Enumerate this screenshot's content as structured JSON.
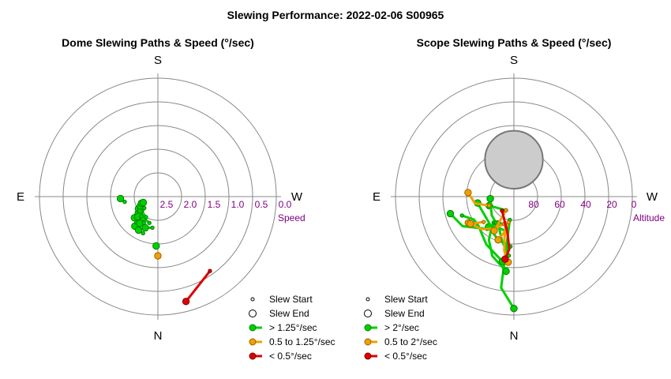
{
  "title": "Slewing Performance: 2022-02-06 S00965",
  "colors": {
    "fast": "#00d000",
    "fast_stroke": "#008000",
    "mid": "#f0a000",
    "mid_stroke": "#a06000",
    "slow": "#dd0000",
    "slow_stroke": "#800000",
    "axis_label": "#800080",
    "pole": "#cccccc"
  },
  "chart_data": [
    {
      "type": "polar-scatter",
      "title": "Dome Slewing Paths & Speed (°/sec)",
      "directions": {
        "top": "S",
        "bottom": "N",
        "left": "E",
        "right": "W"
      },
      "radial_label": "Speed",
      "radial_ticks": [
        "2.5",
        "2.0",
        "1.5",
        "1.0",
        "0.5",
        "0.0"
      ],
      "radial_tick_values": [
        2.5,
        2.0,
        1.5,
        1.0,
        0.5,
        0.0
      ],
      "rlim": [
        3.0,
        0.0
      ],
      "legend": {
        "position": "bottom-right",
        "entries": [
          "Slew Start",
          "Slew End",
          "> 1.25°/sec",
          "0.5 to 1.25°/sec",
          "< 0.5°/sec"
        ]
      },
      "paths": [
        {
          "speed_class": "slow",
          "az": [
            195,
            215
          ],
          "r": [
            0.25,
            0.7
          ]
        },
        {
          "speed_class": "mid",
          "az": [
            180,
            180
          ],
          "r": [
            1.5,
            1.5
          ]
        },
        {
          "speed_class": "fast",
          "az": [
            178,
            178
          ],
          "r": [
            1.75,
            1.75
          ]
        },
        {
          "speed_class": "fast",
          "az": [
            142,
            148
          ],
          "r": [
            2.05,
            2.05
          ]
        },
        {
          "speed_class": "fast",
          "az": [
            150,
            158
          ],
          "r": [
            2.02,
            2.0
          ]
        },
        {
          "speed_class": "fast",
          "az": [
            132,
            140
          ],
          "r": [
            2.2,
            2.15
          ]
        },
        {
          "speed_class": "fast",
          "az": [
            146,
            160
          ],
          "r": [
            2.18,
            2.12
          ]
        },
        {
          "speed_class": "fast",
          "az": [
            158,
            170
          ],
          "r": [
            2.15,
            2.2
          ]
        },
        {
          "speed_class": "fast",
          "az": [
            130,
            132
          ],
          "r": [
            2.35,
            2.3
          ]
        },
        {
          "speed_class": "fast",
          "az": [
            135,
            152
          ],
          "r": [
            2.28,
            2.25
          ]
        },
        {
          "speed_class": "fast",
          "az": [
            145,
            162
          ],
          "r": [
            2.35,
            2.3
          ]
        },
        {
          "speed_class": "fast",
          "az": [
            122,
            140
          ],
          "r": [
            2.42,
            2.35
          ]
        },
        {
          "speed_class": "fast",
          "az": [
            128,
            150
          ],
          "r": [
            2.45,
            2.4
          ]
        },
        {
          "speed_class": "fast",
          "az": [
            118,
            130
          ],
          "r": [
            2.5,
            2.5
          ]
        },
        {
          "speed_class": "fast",
          "az": [
            112,
            118
          ],
          "r": [
            2.55,
            2.55
          ]
        },
        {
          "speed_class": "fast",
          "az": [
            112,
            130
          ],
          "r": [
            2.6,
            2.55
          ]
        },
        {
          "speed_class": "fast",
          "az": [
            93,
            99
          ],
          "r": [
            2.05,
            2.15
          ]
        }
      ]
    },
    {
      "type": "polar-scatter",
      "title": "Scope Slewing Paths & Speed (°/sec)",
      "directions": {
        "top": "S",
        "bottom": "N",
        "left": "E",
        "right": "W"
      },
      "radial_label": "Altitude",
      "radial_ticks": [
        "80",
        "60",
        "40",
        "20",
        "0"
      ],
      "radial_tick_values": [
        80,
        60,
        40,
        20,
        0
      ],
      "rlim": [
        90,
        0
      ],
      "pole_marker": {
        "az": 0,
        "alt": 62,
        "radius_alt": 22
      },
      "legend": {
        "position": "bottom-right",
        "entries": [
          "Slew Start",
          "Slew End",
          "> 2°/sec",
          "0.5 to 2°/sec",
          "< 0.5°/sec"
        ]
      },
      "paths": [
        {
          "speed_class": "fast",
          "az": [
            180,
            172,
            170
          ],
          "alt": [
            5,
            20,
            72
          ]
        },
        {
          "speed_class": "fast",
          "az": [
            174,
            160,
            150,
            145,
            142
          ],
          "alt": [
            33,
            42,
            52,
            60,
            65
          ]
        },
        {
          "speed_class": "fast",
          "az": [
            170,
            150,
            130,
            120,
            110
          ],
          "alt": [
            40,
            48,
            55,
            55,
            48
          ]
        },
        {
          "speed_class": "fast",
          "az": [
            105,
            120,
            140
          ],
          "alt": [
            40,
            45,
            58
          ]
        },
        {
          "speed_class": "fast",
          "az": [
            140,
            160,
            176
          ],
          "alt": [
            60,
            55,
            52
          ]
        },
        {
          "speed_class": "fast",
          "az": [
            150,
            165,
            175
          ],
          "alt": [
            66,
            55,
            45
          ]
        },
        {
          "speed_class": "fast",
          "az": [
            100,
            140,
            170,
            174
          ],
          "alt": [
            62,
            62,
            63,
            40
          ]
        },
        {
          "speed_class": "fast",
          "az": [
            110,
            150
          ],
          "alt": [
            70,
            78
          ]
        },
        {
          "speed_class": "fast",
          "az": [
            95,
            130,
            145
          ],
          "alt": [
            72,
            68,
            66
          ]
        },
        {
          "speed_class": "mid",
          "az": [
            175,
            170,
            167,
            166
          ],
          "alt": [
            40,
            48,
            58,
            66
          ]
        },
        {
          "speed_class": "mid",
          "az": [
            120,
            135,
            150,
            160
          ],
          "alt": [
            50,
            55,
            62,
            68
          ]
        },
        {
          "speed_class": "mid",
          "az": [
            150,
            150
          ],
          "alt": [
            60,
            78
          ]
        },
        {
          "speed_class": "mid",
          "az": [
            85,
            100,
            110
          ],
          "alt": [
            55,
            60,
            70
          ]
        },
        {
          "speed_class": "mid",
          "az": [
            122,
            130
          ],
          "alt": [
            51,
            60
          ]
        },
        {
          "speed_class": "mid",
          "az": [
            160,
            165,
            168
          ],
          "alt": [
            55,
            62,
            70
          ]
        },
        {
          "speed_class": "slow",
          "az": [
            172,
            175,
            170,
            140
          ],
          "alt": [
            42,
            50,
            62,
            76
          ]
        }
      ]
    }
  ]
}
